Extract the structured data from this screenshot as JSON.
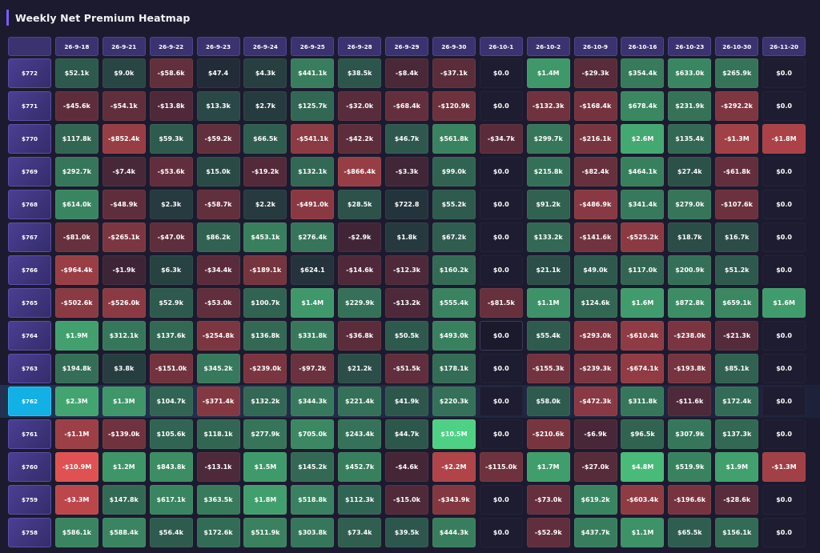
{
  "title": "Weekly Net Premium Heatmap",
  "colors": {
    "background": "#1c1a2e",
    "accent": "#7c5cff",
    "current_strike": "#13b0e6",
    "positive_strong": "#4ed184",
    "negative_strong": "#e05151"
  },
  "chart_data": {
    "type": "heatmap",
    "title": "Weekly Net Premium Heatmap",
    "current_strike": "$762",
    "columns": [
      "26-9-18",
      "26-9-21",
      "26-9-22",
      "26-9-23",
      "26-9-24",
      "26-9-25",
      "26-9-28",
      "26-9-29",
      "26-9-30",
      "26-10-1",
      "26-10-2",
      "26-10-9",
      "26-10-16",
      "26-10-23",
      "26-10-30",
      "26-11-20"
    ],
    "rows": [
      {
        "label": "$772",
        "cells": [
          "$52.1k",
          "$9.0k",
          "-$58.6k",
          "$47.4",
          "$4.3k",
          "$441.1k",
          "$38.5k",
          "-$8.4k",
          "-$37.1k",
          "$0.0",
          "$1.4M",
          "-$29.3k",
          "$354.4k",
          "$633.0k",
          "$265.9k",
          "$0.0"
        ],
        "values": [
          52100,
          9000,
          -58600,
          47.4,
          4300,
          441100,
          38500,
          -8400,
          -37100,
          0,
          1400000,
          -29300,
          354400,
          633000,
          265900,
          0
        ]
      },
      {
        "label": "$771",
        "cells": [
          "-$45.6k",
          "-$54.1k",
          "-$13.8k",
          "$13.3k",
          "$2.7k",
          "$125.7k",
          "-$32.0k",
          "-$68.4k",
          "-$120.9k",
          "$0.0",
          "-$132.3k",
          "-$168.4k",
          "$678.4k",
          "$231.9k",
          "-$292.2k",
          "$0.0"
        ],
        "values": [
          -45600,
          -54100,
          -13800,
          13300,
          2700,
          125700,
          -32000,
          -68400,
          -120900,
          0,
          -132300,
          -168400,
          678400,
          231900,
          -292200,
          0
        ]
      },
      {
        "label": "$770",
        "cells": [
          "$117.8k",
          "-$852.4k",
          "$59.3k",
          "-$59.2k",
          "$66.5k",
          "-$541.1k",
          "-$42.2k",
          "$46.7k",
          "$561.8k",
          "-$34.7k",
          "$299.7k",
          "-$216.1k",
          "$2.6M",
          "$135.4k",
          "-$1.3M",
          "-$1.8M"
        ],
        "values": [
          117800,
          -852400,
          59300,
          -59200,
          66500,
          -541100,
          -42200,
          46700,
          561800,
          -34700,
          299700,
          -216100,
          2600000,
          135400,
          -1300000,
          -1800000
        ]
      },
      {
        "label": "$769",
        "cells": [
          "$292.7k",
          "-$7.4k",
          "-$53.6k",
          "$15.0k",
          "-$19.2k",
          "$132.1k",
          "-$866.4k",
          "-$3.3k",
          "$99.0k",
          "$0.0",
          "$215.8k",
          "-$82.4k",
          "$464.1k",
          "$27.4k",
          "-$61.8k",
          "$0.0"
        ],
        "values": [
          292700,
          -7400,
          -53600,
          15000,
          -19200,
          132100,
          -866400,
          -3300,
          99000,
          0,
          215800,
          -82400,
          464100,
          27400,
          -61800,
          0
        ]
      },
      {
        "label": "$768",
        "cells": [
          "$614.0k",
          "-$48.9k",
          "$2.3k",
          "-$58.7k",
          "$2.2k",
          "-$491.0k",
          "$28.5k",
          "$722.8",
          "$55.2k",
          "$0.0",
          "$91.2k",
          "-$486.9k",
          "$341.4k",
          "$279.0k",
          "-$107.6k",
          "$0.0"
        ],
        "values": [
          614000,
          -48900,
          2300,
          -58700,
          2200,
          -491000,
          28500,
          722.8,
          55200,
          0,
          91200,
          -486900,
          341400,
          279000,
          -107600,
          0
        ]
      },
      {
        "label": "$767",
        "cells": [
          "-$81.0k",
          "-$265.1k",
          "-$47.0k",
          "$86.2k",
          "$453.1k",
          "$276.4k",
          "-$2.9k",
          "$1.8k",
          "$67.2k",
          "$0.0",
          "$133.2k",
          "-$141.6k",
          "-$525.2k",
          "$18.7k",
          "$16.7k",
          "$0.0"
        ],
        "values": [
          -81000,
          -265100,
          -47000,
          86200,
          453100,
          276400,
          -2900,
          1800,
          67200,
          0,
          133200,
          -141600,
          -525200,
          18700,
          16700,
          0
        ]
      },
      {
        "label": "$766",
        "cells": [
          "-$964.4k",
          "-$1.9k",
          "$6.3k",
          "-$34.4k",
          "-$189.1k",
          "$624.1",
          "-$14.6k",
          "-$12.3k",
          "$160.2k",
          "$0.0",
          "$21.1k",
          "$49.0k",
          "$117.0k",
          "$200.9k",
          "$51.2k",
          "$0.0"
        ],
        "values": [
          -964400,
          -1900,
          6300,
          -34400,
          -189100,
          624.1,
          -14600,
          -12300,
          160200,
          0,
          21100,
          49000,
          117000,
          200900,
          51200,
          0
        ]
      },
      {
        "label": "$765",
        "cells": [
          "-$502.6k",
          "-$526.0k",
          "$52.9k",
          "-$53.0k",
          "$100.7k",
          "$1.4M",
          "$229.9k",
          "-$13.2k",
          "$555.4k",
          "-$81.5k",
          "$1.1M",
          "$124.6k",
          "$1.6M",
          "$872.8k",
          "$659.1k",
          "$1.6M"
        ],
        "values": [
          -502600,
          -526000,
          52900,
          -53000,
          100700,
          1400000,
          229900,
          -13200,
          555400,
          -81500,
          1100000,
          124600,
          1600000,
          872800,
          659100,
          1600000
        ]
      },
      {
        "label": "$764",
        "cells": [
          "$1.9M",
          "$312.1k",
          "$137.6k",
          "-$254.8k",
          "$136.8k",
          "$331.8k",
          "-$36.8k",
          "$50.5k",
          "$493.0k",
          "$0.0",
          "$55.4k",
          "-$293.0k",
          "-$610.4k",
          "-$238.0k",
          "-$21.3k",
          "$0.0"
        ],
        "values": [
          1900000,
          312100,
          137600,
          -254800,
          136800,
          331800,
          -36800,
          50500,
          493000,
          0,
          55400,
          -293000,
          -610400,
          -238000,
          -21300,
          0
        ]
      },
      {
        "label": "$763",
        "cells": [
          "$194.8k",
          "$3.8k",
          "-$151.0k",
          "$345.2k",
          "-$239.0k",
          "-$97.2k",
          "$21.2k",
          "-$51.5k",
          "$178.1k",
          "$0.0",
          "-$155.3k",
          "-$239.3k",
          "-$674.1k",
          "-$193.8k",
          "$85.1k",
          "$0.0"
        ],
        "values": [
          194800,
          3800,
          -151000,
          345200,
          -239000,
          -97200,
          21200,
          -51500,
          178100,
          0,
          -155300,
          -239300,
          -674100,
          -193800,
          85100,
          0
        ]
      },
      {
        "label": "$762",
        "cells": [
          "$2.3M",
          "$1.3M",
          "$104.7k",
          "-$371.4k",
          "$132.2k",
          "$344.3k",
          "$221.4k",
          "$41.9k",
          "$220.3k",
          "$0.0",
          "$58.0k",
          "-$472.3k",
          "$311.8k",
          "-$11.6k",
          "$172.4k",
          "$0.0"
        ],
        "values": [
          2300000,
          1300000,
          104700,
          -371400,
          132200,
          344300,
          221400,
          41900,
          220300,
          0,
          58000,
          -472300,
          311800,
          -11600,
          172400,
          0
        ]
      },
      {
        "label": "$761",
        "cells": [
          "-$1.1M",
          "-$139.0k",
          "$105.6k",
          "$118.1k",
          "$277.9k",
          "$705.0k",
          "$243.4k",
          "$44.7k",
          "$10.5M",
          "$0.0",
          "-$210.6k",
          "-$6.9k",
          "$96.5k",
          "$307.9k",
          "$137.3k",
          "$0.0"
        ],
        "values": [
          -1100000,
          -139000,
          105600,
          118100,
          277900,
          705000,
          243400,
          44700,
          10500000,
          0,
          -210600,
          -6900,
          96500,
          307900,
          137300,
          0
        ]
      },
      {
        "label": "$760",
        "cells": [
          "-$10.9M",
          "$1.2M",
          "$843.8k",
          "-$13.1k",
          "$1.5M",
          "$145.2k",
          "$452.7k",
          "-$4.6k",
          "-$2.2M",
          "-$115.0k",
          "$1.7M",
          "-$27.0k",
          "$4.8M",
          "$519.9k",
          "$1.9M",
          "-$1.3M"
        ],
        "values": [
          -10900000,
          1200000,
          843800,
          -13100,
          1500000,
          145200,
          452700,
          -4600,
          -2200000,
          -115000,
          1700000,
          -27000,
          4800000,
          519900,
          1900000,
          -1300000
        ]
      },
      {
        "label": "$759",
        "cells": [
          "-$3.3M",
          "$147.8k",
          "$617.1k",
          "$363.5k",
          "$1.8M",
          "$518.8k",
          "$112.3k",
          "-$15.0k",
          "-$343.9k",
          "$0.0",
          "-$73.0k",
          "$619.2k",
          "-$603.4k",
          "-$196.6k",
          "-$28.6k",
          "$0.0"
        ],
        "values": [
          -3300000,
          147800,
          617100,
          363500,
          1800000,
          518800,
          112300,
          -15000,
          -343900,
          0,
          -73000,
          619200,
          -603400,
          -196600,
          -28600,
          0
        ]
      },
      {
        "label": "$758",
        "cells": [
          "$586.1k",
          "$588.4k",
          "$56.4k",
          "$172.6k",
          "$511.9k",
          "$303.8k",
          "$73.4k",
          "$39.5k",
          "$444.3k",
          "$0.0",
          "-$52.9k",
          "$437.7k",
          "$1.1M",
          "$65.5k",
          "$156.1k",
          "$0.0"
        ],
        "values": [
          586100,
          588400,
          56400,
          172600,
          511900,
          303800,
          73400,
          39500,
          444300,
          0,
          -52900,
          437700,
          1100000,
          65500,
          156100,
          0
        ]
      }
    ]
  }
}
